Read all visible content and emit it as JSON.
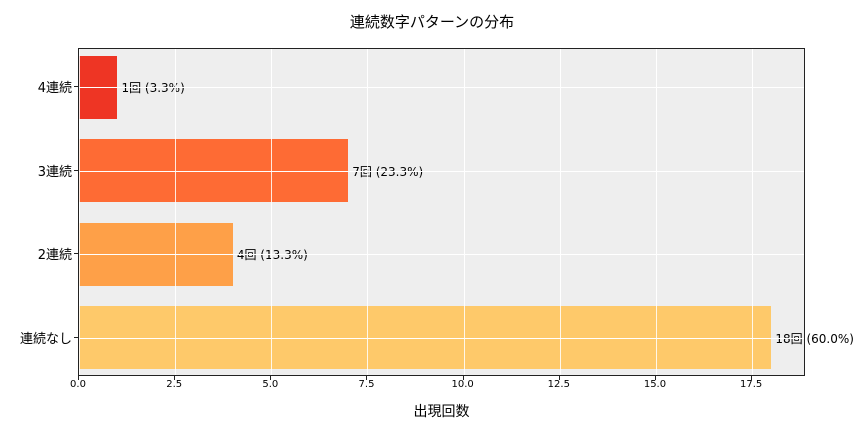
{
  "chart_data": {
    "type": "bar",
    "orientation": "horizontal",
    "title": "連続数字パターンの分布",
    "xlabel": "出現回数",
    "ylabel": "",
    "categories": [
      "4連続",
      "3連続",
      "2連続",
      "連続なし"
    ],
    "values": [
      1,
      7,
      4,
      18
    ],
    "percentages": [
      3.3,
      23.3,
      13.3,
      60.0
    ],
    "bar_labels": [
      "1回 (3.3%)",
      "7回 (23.3%)",
      "4回 (13.3%)",
      "18回 (60.0%)"
    ],
    "colors": [
      "#ee3524",
      "#fe6b34",
      "#fea048",
      "#fec96a"
    ],
    "xlim": [
      0,
      18.9
    ],
    "xticks": [
      "0.0",
      "2.5",
      "5.0",
      "7.5",
      "10.0",
      "12.5",
      "15.0",
      "17.5"
    ],
    "grid": true,
    "legend": null,
    "background": "#eeeeee"
  }
}
